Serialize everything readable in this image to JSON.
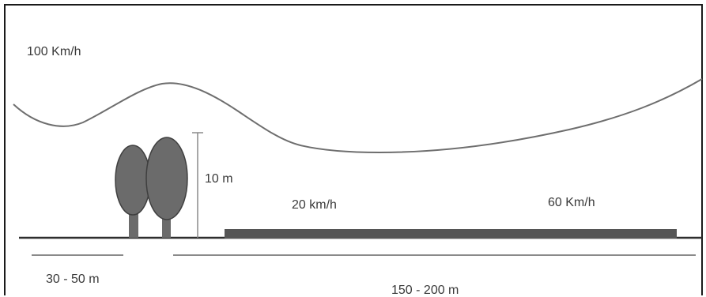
{
  "labels": {
    "wind_top": "100 Km/h",
    "tree_height": "10 m",
    "wind_near": "20 km/h",
    "wind_far": "60 Km/h",
    "tree_width": "30 - 50 m",
    "shelter_distance": "150 - 200 m"
  },
  "colors": {
    "frame": "#1a1a1a",
    "wind_line": "#6e6e6e",
    "ground": "#2e2e2e",
    "tree": "#6b6b6b",
    "field": "#555555",
    "measure": "#8a8a8a"
  }
}
